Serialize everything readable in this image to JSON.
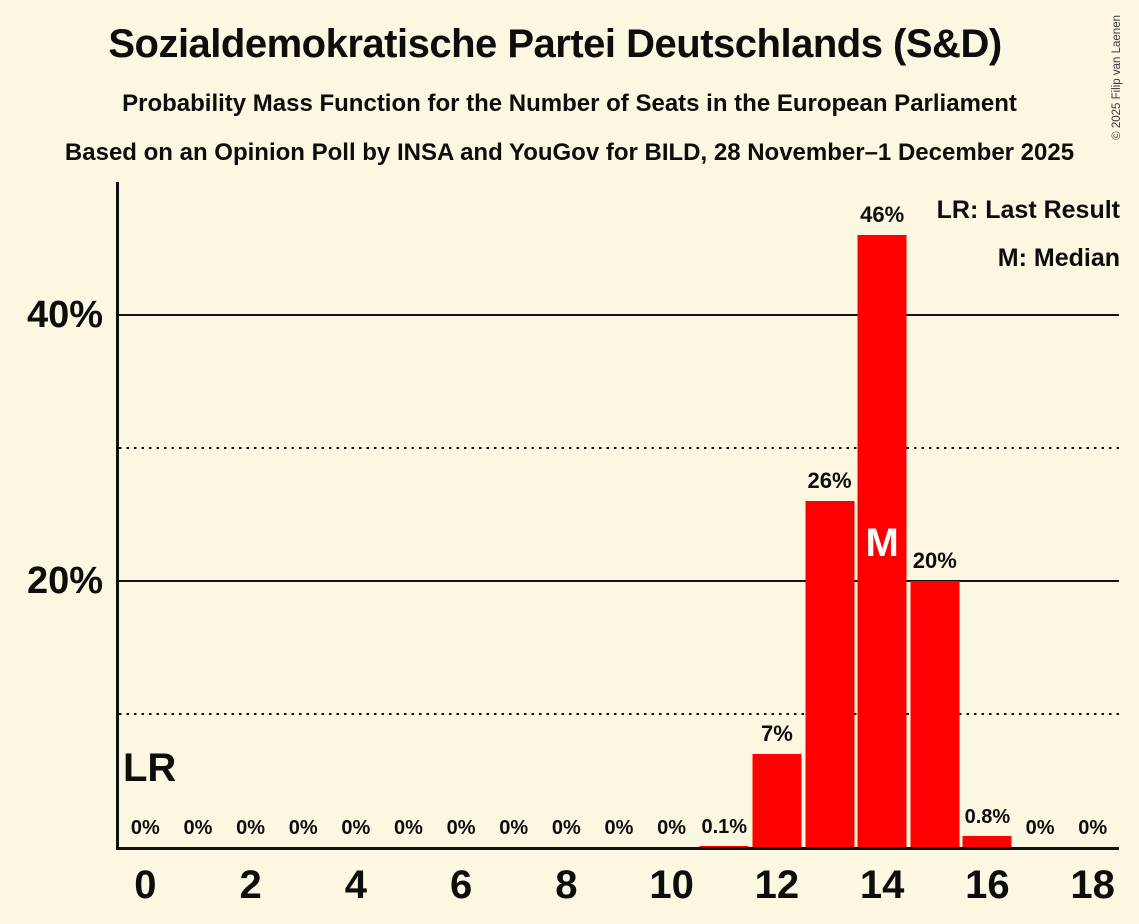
{
  "header": {
    "title": "Sozialdemokratische Partei Deutschlands (S&D)",
    "subtitle": "Probability Mass Function for the Number of Seats in the European Parliament",
    "source_line": "Based on an Opinion Poll by INSA and YouGov for BILD, 28 November–1 December 2025"
  },
  "copyright": "© 2025 Filip van Laenen",
  "legend": {
    "lr": "LR: Last Result",
    "m": "M: Median"
  },
  "colors": {
    "background": "#FCF7E1",
    "bar": "#FF0000",
    "text": "#0D0D0D",
    "median_text": "#FFFFFF",
    "gridline": "#131313"
  },
  "chart_data": {
    "type": "bar",
    "title": "Probability Mass Function for the Number of Seats in the European Parliament",
    "x": [
      0,
      1,
      2,
      3,
      4,
      5,
      6,
      7,
      8,
      9,
      10,
      11,
      12,
      13,
      14,
      15,
      16,
      17,
      18
    ],
    "values": [
      0,
      0,
      0,
      0,
      0,
      0,
      0,
      0,
      0,
      0,
      0,
      0.1,
      7,
      26,
      46,
      20,
      0.8,
      0,
      0
    ],
    "bar_labels": [
      "0%",
      "0%",
      "0%",
      "0%",
      "0%",
      "0%",
      "0%",
      "0%",
      "0%",
      "0%",
      "0%",
      "0.1%",
      "7%",
      "26%",
      "46%",
      "20%",
      "0.8%",
      "0%",
      "0%"
    ],
    "x_tick_seats": [
      0,
      2,
      4,
      6,
      8,
      10,
      12,
      14,
      16,
      18
    ],
    "x_tick_labels": [
      "0",
      "2",
      "4",
      "6",
      "8",
      "10",
      "12",
      "14",
      "16",
      "18"
    ],
    "ylim": [
      0,
      50
    ],
    "y_gridlines": [
      {
        "pct": 10,
        "style": "dotted",
        "label": ""
      },
      {
        "pct": 20,
        "style": "solid",
        "label": "20%"
      },
      {
        "pct": 30,
        "style": "dotted",
        "label": ""
      },
      {
        "pct": 40,
        "style": "solid",
        "label": "40%"
      }
    ],
    "grid": true,
    "legend_position": "top-right",
    "median_seat": 14,
    "median_marker": "M",
    "last_result_seat": 0,
    "last_result_marker": "LR"
  }
}
